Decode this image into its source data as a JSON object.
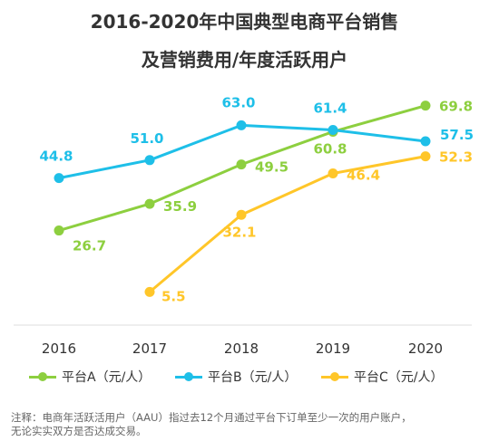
{
  "title": {
    "line1": "2016-2020年中国典型电商平台销售",
    "line2": "及营销费用/年度活跃用户"
  },
  "chart_data": {
    "type": "line",
    "x": [
      "2016",
      "2017",
      "2018",
      "2019",
      "2020"
    ],
    "series": [
      {
        "name": "平台A（元/人）",
        "color": "#8DCF3F",
        "values": [
          26.7,
          35.9,
          49.5,
          60.8,
          69.8
        ],
        "labels": [
          "26.7",
          "35.9",
          "49.5",
          "60.8",
          "69.8"
        ]
      },
      {
        "name": "平台B（元/人）",
        "color": "#1EBFE8",
        "values": [
          44.8,
          51.0,
          63.0,
          61.4,
          57.5
        ],
        "labels": [
          "44.8",
          "51.0",
          "63.0",
          "61.4",
          "57.5"
        ]
      },
      {
        "name": "平台C（元/人）",
        "color": "#FFC629",
        "values": [
          null,
          5.5,
          32.1,
          46.4,
          52.3
        ],
        "labels": [
          null,
          "5.5",
          "32.1",
          "46.4",
          "52.3"
        ]
      }
    ],
    "grid": false,
    "legend_position": "bottom"
  },
  "note": {
    "line1": "注释：电商年活跃活用户（AAU）指过去12个月通过平台下订单至少一次的用户账户，",
    "line2": "无论实实双方是否达成交易。"
  }
}
